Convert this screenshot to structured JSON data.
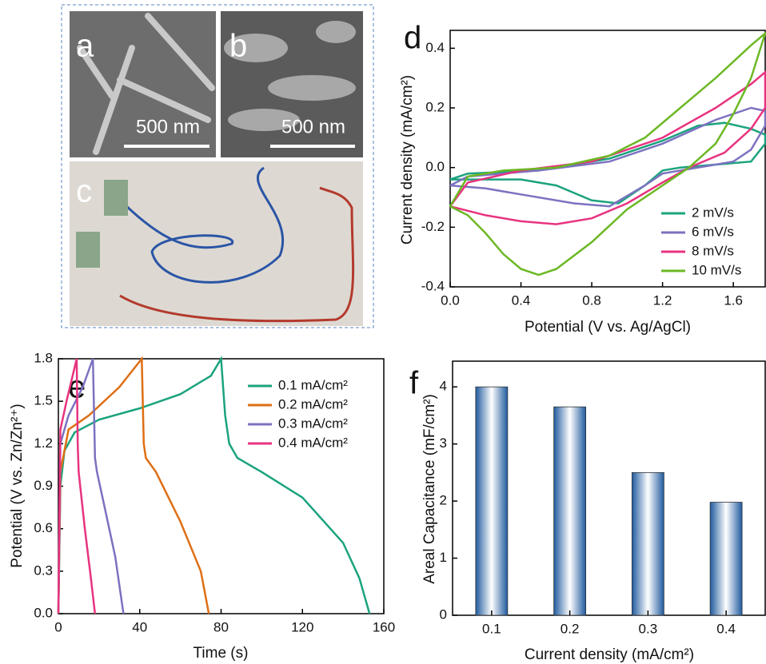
{
  "images": [
    {
      "label": "a",
      "scale_bar": "500 nm"
    },
    {
      "label": "b",
      "scale_bar": "500 nm"
    },
    {
      "label": "c"
    }
  ],
  "chart_data": [
    {
      "type": "line",
      "panel": "d",
      "x_label": "Potential (V vs. Ag/AgCl)",
      "y_label": "Current density (mA/cm²)",
      "xlim": [
        0,
        1.78
      ],
      "xticks": [
        {
          "value": 0,
          "label": "0.0"
        },
        0.4,
        0.8,
        1.2,
        1.6
      ],
      "ylim": [
        -0.4,
        0.46
      ],
      "yticks": [
        -0.4,
        -0.2,
        {
          "value": 0,
          "label": "0.0"
        },
        0.2,
        0.4
      ],
      "legend": "lower right",
      "series": [
        {
          "name": "2 mV/s",
          "color": "#1ba37e",
          "x": [
            0,
            0.1,
            0.5,
            0.9,
            1.2,
            1.4,
            1.55,
            1.7,
            1.78,
            1.78,
            1.7,
            1.5,
            1.3,
            1.2,
            1.1,
            0.95,
            0.8,
            0.6,
            0.4,
            0.2,
            0
          ],
          "values": [
            -0.04,
            -0.02,
            -0.01,
            0.03,
            0.09,
            0.14,
            0.15,
            0.13,
            0.11,
            0.08,
            0.02,
            0.01,
            0.0,
            -0.01,
            -0.06,
            -0.12,
            -0.11,
            -0.06,
            -0.04,
            -0.04,
            -0.04
          ]
        },
        {
          "name": "6 mV/s",
          "color": "#7b72c0",
          "x": [
            0,
            0.1,
            0.5,
            0.9,
            1.2,
            1.5,
            1.7,
            1.78,
            1.78,
            1.7,
            1.6,
            1.4,
            1.2,
            1.1,
            0.9,
            0.7,
            0.4,
            0.2,
            0
          ],
          "values": [
            -0.06,
            -0.03,
            -0.01,
            0.02,
            0.08,
            0.16,
            0.2,
            0.19,
            0.14,
            0.06,
            0.02,
            0.0,
            -0.02,
            -0.06,
            -0.13,
            -0.12,
            -0.09,
            -0.07,
            -0.06
          ]
        },
        {
          "name": "8 mV/s",
          "color": "#e8337f",
          "x": [
            0,
            0.1,
            0.4,
            0.8,
            1.2,
            1.5,
            1.7,
            1.78,
            1.78,
            1.7,
            1.55,
            1.35,
            1.2,
            1.0,
            0.8,
            0.6,
            0.4,
            0.2,
            0
          ],
          "values": [
            -0.13,
            -0.05,
            -0.01,
            0.02,
            0.1,
            0.2,
            0.28,
            0.32,
            0.2,
            0.13,
            0.05,
            0.0,
            -0.05,
            -0.12,
            -0.17,
            -0.19,
            -0.18,
            -0.16,
            -0.13
          ]
        },
        {
          "name": "10 mV/s",
          "color": "#6cb824",
          "x": [
            0,
            0.1,
            0.3,
            0.6,
            0.9,
            1.1,
            1.3,
            1.5,
            1.7,
            1.78,
            1.7,
            1.6,
            1.5,
            1.35,
            1.2,
            1.0,
            0.8,
            0.6,
            0.5,
            0.4,
            0.3,
            0.2,
            0.1,
            0
          ],
          "values": [
            -0.13,
            -0.03,
            -0.01,
            0.0,
            0.04,
            0.1,
            0.2,
            0.3,
            0.41,
            0.45,
            0.3,
            0.18,
            0.08,
            0.0,
            -0.06,
            -0.14,
            -0.25,
            -0.34,
            -0.36,
            -0.34,
            -0.29,
            -0.22,
            -0.16,
            -0.13
          ]
        }
      ]
    },
    {
      "type": "line",
      "panel": "e",
      "x_label": "Time (s)",
      "y_label": "Potential (V vs. Zn/Zn²⁺)",
      "xlim": [
        0,
        160
      ],
      "xticks": [
        0,
        40,
        80,
        120,
        160
      ],
      "ylim": [
        0,
        1.8
      ],
      "yticks": [
        {
          "value": 0,
          "label": "0.0"
        },
        0.3,
        0.6,
        0.9,
        1.2,
        1.5,
        1.8
      ],
      "legend": "upper right",
      "series": [
        {
          "name": "0.1 mA/cm²",
          "color": "#1ba37e",
          "x": [
            0,
            1,
            3,
            8,
            20,
            40,
            60,
            75,
            80,
            82,
            84,
            88,
            100,
            120,
            140,
            148,
            153
          ],
          "values": [
            0,
            0.9,
            1.15,
            1.28,
            1.37,
            1.45,
            1.55,
            1.68,
            1.8,
            1.4,
            1.2,
            1.1,
            1.0,
            0.82,
            0.5,
            0.25,
            0
          ]
        },
        {
          "name": "0.2 mA/cm²",
          "color": "#de6f14",
          "x": [
            0,
            1,
            5,
            15,
            30,
            41,
            42,
            43,
            48,
            60,
            70,
            74
          ],
          "values": [
            0,
            1.0,
            1.3,
            1.4,
            1.6,
            1.8,
            1.2,
            1.1,
            1.0,
            0.65,
            0.3,
            0
          ]
        },
        {
          "name": "0.3 mA/cm²",
          "color": "#7b72c0",
          "x": [
            0,
            1,
            5,
            12,
            17,
            18,
            19,
            22,
            28,
            32
          ],
          "values": [
            0,
            1.2,
            1.4,
            1.6,
            1.8,
            1.1,
            1.0,
            0.8,
            0.4,
            0
          ]
        },
        {
          "name": "0.4 mA/cm²",
          "color": "#e8337f",
          "x": [
            0,
            1,
            4,
            9,
            9.5,
            10,
            13,
            16,
            18
          ],
          "values": [
            0,
            1.3,
            1.5,
            1.8,
            1.2,
            1.0,
            0.6,
            0.25,
            0
          ]
        }
      ]
    },
    {
      "type": "bar",
      "panel": "f",
      "x_label": "Current density (mA/cm²)",
      "y_label": "Areal Capacitance (mF/cm²)",
      "categories": [
        "0.1",
        "0.2",
        "0.3",
        "0.4"
      ],
      "values": [
        4.0,
        3.65,
        2.5,
        1.98
      ],
      "color": "#1f5a9e",
      "ylim": [
        0,
        4.45
      ],
      "yticks": [
        0,
        1,
        2,
        3,
        4
      ]
    }
  ]
}
